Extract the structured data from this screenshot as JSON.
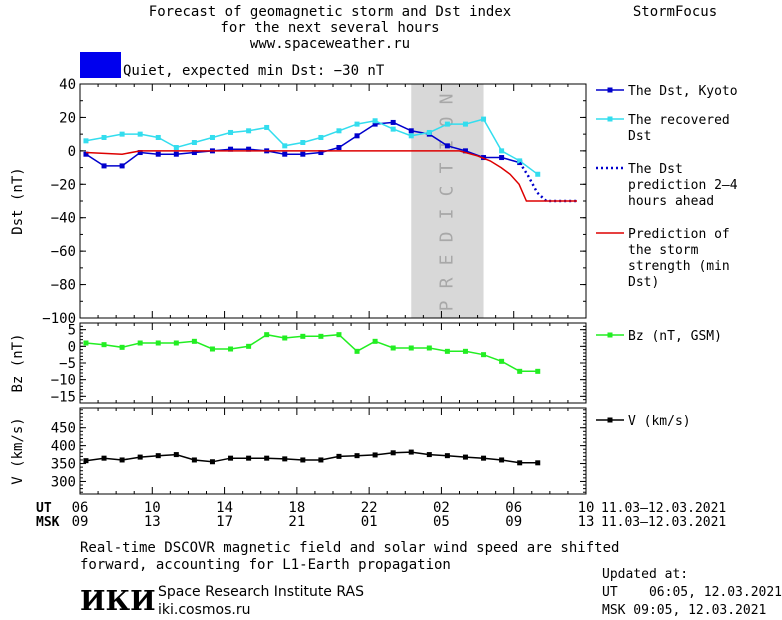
{
  "header": {
    "title_lines": [
      "Forecast of geomagnetic storm and Dst index",
      "for the next several hours",
      "www.spaceweather.ru"
    ],
    "brand": "StormFocus"
  },
  "status": {
    "color": "#0000ee",
    "text": "Quiet, expected min Dst: −30 nT"
  },
  "colors": {
    "dst_kyoto": "#0000cc",
    "dst_recovered": "#33ddee",
    "dst_prediction": "#0000cc",
    "storm_prediction": "#dd0000",
    "bz": "#22ee22",
    "v": "#000000",
    "prediction_band": "#d8d8d8"
  },
  "chart_data": [
    {
      "type": "line",
      "title": "",
      "xlabel": "",
      "ylabel": "Dst (nT)",
      "ylim": [
        -100,
        40
      ],
      "yticks": [
        40,
        20,
        0,
        -20,
        -40,
        -60,
        -80,
        -100
      ],
      "grid": false,
      "legend_position": "right",
      "prediction_band": {
        "x_range": [
          24.33,
          28.33
        ],
        "label": "PREDICTION"
      },
      "x": [
        6.33,
        7.33,
        8.33,
        9.33,
        10.33,
        11.33,
        12.33,
        13.33,
        14.33,
        15.33,
        16.33,
        17.33,
        18.33,
        19.33,
        20.33,
        21.33,
        22.33,
        23.33,
        24.33,
        25.33,
        26.33,
        27.33,
        28.33,
        29.33,
        30.33
      ],
      "series": [
        {
          "name": "The Dst, Kyoto",
          "style": "line-square",
          "x": [
            6.33,
            7.33,
            8.33,
            9.33,
            10.33,
            11.33,
            12.33,
            13.33,
            14.33,
            15.33,
            16.33,
            17.33,
            18.33,
            19.33,
            20.33,
            21.33,
            22.33,
            23.33,
            24.33,
            25.33,
            26.33,
            27.33,
            28.33,
            29.33,
            30.33
          ],
          "y": [
            -2,
            -9,
            -9,
            -1,
            -2,
            -2,
            -1,
            0,
            1,
            1,
            0,
            -2,
            -2,
            -1,
            2,
            9,
            16,
            17,
            12,
            10,
            3,
            0,
            -4,
            -4,
            -7
          ]
        },
        {
          "name": "The recovered Dst",
          "style": "line-square",
          "x": [
            6.33,
            7.33,
            8.33,
            9.33,
            10.33,
            11.33,
            12.33,
            13.33,
            14.33,
            15.33,
            16.33,
            17.33,
            18.33,
            19.33,
            20.33,
            21.33,
            22.33,
            23.33,
            24.33,
            25.33,
            26.33,
            27.33,
            28.33,
            29.33,
            30.33,
            31.33
          ],
          "y": [
            6,
            8,
            10,
            10,
            8,
            2,
            5,
            8,
            11,
            12,
            14,
            3,
            5,
            8,
            12,
            16,
            18,
            13,
            9,
            11,
            16,
            16,
            19,
            0,
            -6,
            -14
          ]
        },
        {
          "name": "The Dst prediction 2–4 hours ahead",
          "style": "dotted",
          "x": [
            30.33,
            30.8,
            31.3,
            31.8,
            33.5
          ],
          "y": [
            -7,
            -15,
            -25,
            -30,
            -30
          ]
        },
        {
          "name": "Prediction of the storm strength (min Dst)",
          "style": "line",
          "x": [
            6.33,
            8.33,
            9.33,
            27.0,
            28.0,
            28.7,
            29.3,
            29.8,
            30.3,
            30.7,
            31.2,
            33.5
          ],
          "y": [
            -1,
            -2,
            0,
            0,
            -3,
            -6,
            -10,
            -14,
            -20,
            -30,
            -30,
            -30
          ]
        }
      ]
    },
    {
      "type": "line",
      "ylabel": "Bz (nT)",
      "ylim": [
        -17,
        7
      ],
      "yticks": [
        5,
        0,
        -5,
        -10,
        -15
      ],
      "series": [
        {
          "name": "Bz (nT, GSM)",
          "style": "line-square",
          "x": [
            6.33,
            7.33,
            8.33,
            9.33,
            10.33,
            11.33,
            12.33,
            13.33,
            14.33,
            15.33,
            16.33,
            17.33,
            18.33,
            19.33,
            20.33,
            21.33,
            22.33,
            23.33,
            24.33,
            25.33,
            26.33,
            27.33,
            28.33,
            29.33,
            30.33,
            31.33
          ],
          "y": [
            1,
            0.5,
            -0.3,
            1,
            1,
            1,
            1.5,
            -0.8,
            -0.8,
            0,
            3.5,
            2.5,
            3,
            3,
            3.5,
            -1.5,
            1.5,
            -0.5,
            -0.5,
            -0.5,
            -1.5,
            -1.5,
            -2.5,
            -4.5,
            -7.5,
            -7.5
          ]
        }
      ]
    },
    {
      "type": "line",
      "ylabel": "V (km/s)",
      "ylim": [
        265,
        505
      ],
      "yticks": [
        450,
        400,
        350,
        300
      ],
      "xlabel_rows": [
        {
          "label": "UT",
          "ticks": [
            "06",
            "10",
            "14",
            "18",
            "22",
            "02",
            "06",
            "10"
          ],
          "range": "11.03–12.03.2021"
        },
        {
          "label": "MSK",
          "ticks": [
            "09",
            "13",
            "17",
            "21",
            "01",
            "05",
            "09",
            "13"
          ],
          "range": "11.03–12.03.2021"
        }
      ],
      "series": [
        {
          "name": "V (km/s)",
          "style": "line-square",
          "x": [
            6.33,
            7.33,
            8.33,
            9.33,
            10.33,
            11.33,
            12.33,
            13.33,
            14.33,
            15.33,
            16.33,
            17.33,
            18.33,
            19.33,
            20.33,
            21.33,
            22.33,
            23.33,
            24.33,
            25.33,
            26.33,
            27.33,
            28.33,
            29.33,
            30.33,
            31.33
          ],
          "y": [
            358,
            365,
            360,
            368,
            372,
            375,
            360,
            355,
            365,
            365,
            365,
            363,
            360,
            360,
            370,
            372,
            374,
            380,
            382,
            375,
            372,
            368,
            365,
            360,
            352,
            352
          ]
        }
      ]
    }
  ],
  "footer": {
    "note_lines": [
      "Real-time DSCOVR magnetic field and solar wind speed are shifted",
      "forward, accounting for L1-Earth propagation"
    ],
    "logo_text": "ИКИ",
    "institute": "Space Research Institute RAS",
    "url": "iki.cosmos.ru",
    "updated_label": "Updated at:",
    "updated_ut": "UT    06:05, 12.03.2021",
    "updated_msk": "MSK 09:05, 12.03.2021"
  }
}
